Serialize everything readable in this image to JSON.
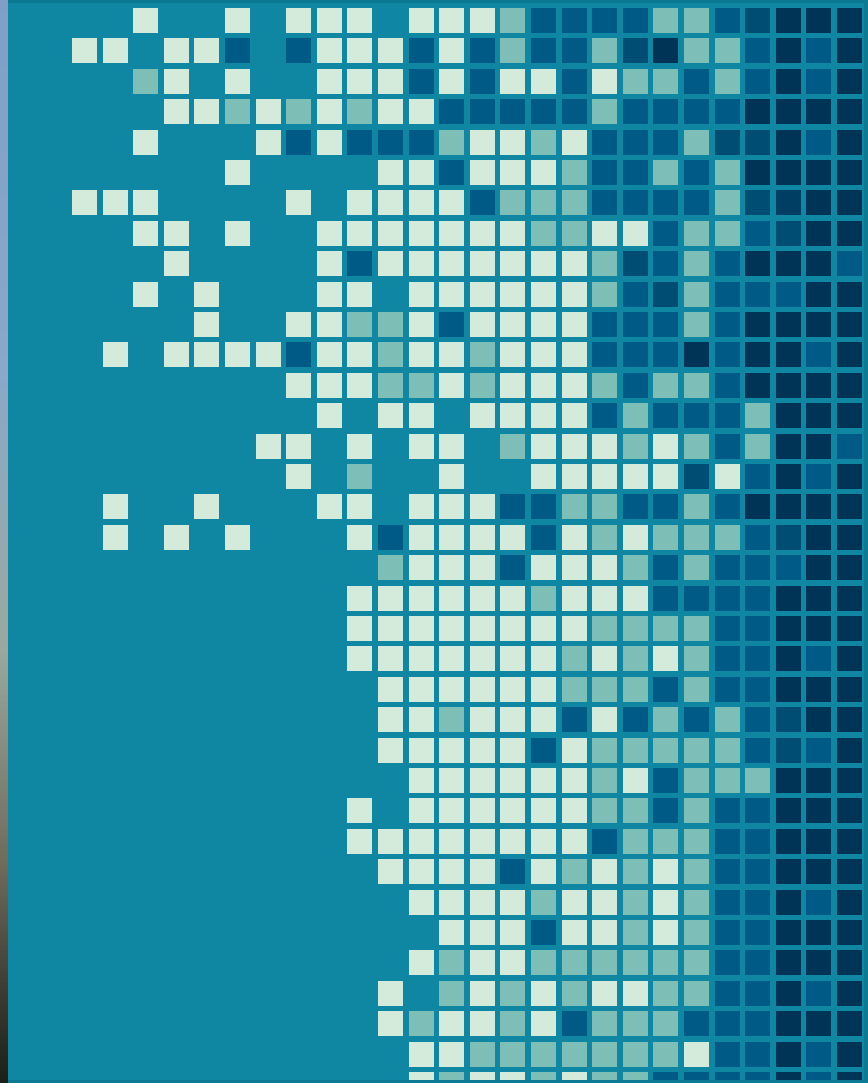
{
  "palette": {
    "background": "#0f87a3",
    "tiles": {
      "1": "#d4ebdc",
      "2": "#7dbfb6",
      "3": "#005a86",
      "4": "#004d74",
      "5": "#003456",
      "6": "#003f63"
    }
  },
  "pixel_grid": [
    "000000000000100101110111233332234555",
    "000000000011011303111313233245223535",
    "000000000000210100111313113122323535",
    "000000000000011212121133333233335555",
    "000000000000100013133321121333244535",
    "000000000000000100001131112332325555",
    "000000000011100001011113222333324655",
    "000000000000110100111111122113223455",
    "000000000000010000131111111243235553",
    "000000000000101000110111111234233355",
    "000000000000001001122131111333235555",
    "000000000001011113112112111333535535",
    "000000000000000001112212111232235555",
    "000000000000000000101101111323332555",
    "000000000000000011010110211121232553",
    "000000000000000001020010011111413535",
    "000000000001001000110111332233235555",
    "000000000001010100013111131212223455",
    "000000000000000000002111311123233355",
    "000000000000000000011111121113333555",
    "000000000000000000011111111222233555",
    "000000000000000000011111112121233535",
    "000000000000000000001111112223233555",
    "000000000000000000001121113132323455",
    "000000000000000000001111131222223435",
    "000000000000000000000111111213222555",
    "000000000000000000010111111223233555",
    "000000000000000000011111111322233555",
    "000000000000000000001111312121233555",
    "000000000000000000000111121121233535",
    "000000000000000000000011131121233555",
    "000000000000000000000121122222233555",
    "000000000000000000001021212112233535",
    "000000000000000000001211213222333555",
    "000000000000000000000112222222133535",
    "000000000000000000000121121223333535"
  ]
}
